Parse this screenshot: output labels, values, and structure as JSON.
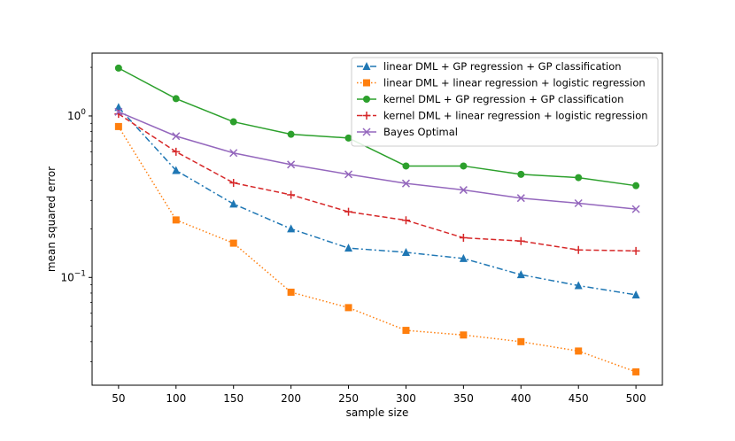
{
  "chart_data": {
    "type": "line",
    "title": "",
    "xlabel": "sample size",
    "ylabel": "mean squared error",
    "x": [
      50,
      100,
      150,
      200,
      250,
      300,
      350,
      400,
      450,
      500
    ],
    "xlim": [
      27,
      523
    ],
    "ylim": [
      0.0215,
      2.45
    ],
    "yscale": "log",
    "grid": false,
    "legend_position": "top-right",
    "x_ticks": [
      "50",
      "100",
      "150",
      "200",
      "250",
      "300",
      "350",
      "400",
      "450",
      "500"
    ],
    "y_ticks": [
      {
        "value": 1,
        "base": "10",
        "exp": "0"
      },
      {
        "value": 0.1,
        "base": "10",
        "exp": "−1"
      }
    ],
    "series": [
      {
        "name": "linear DML + GP regression + GP classification",
        "color": "#1f77b4",
        "dash": "dashdot",
        "marker": "triangle",
        "values": [
          1.13,
          0.46,
          0.285,
          0.2,
          0.152,
          0.143,
          0.131,
          0.104,
          0.089,
          0.078
        ]
      },
      {
        "name": "linear DML + linear regression + logistic regression",
        "color": "#ff7f0e",
        "dash": "dotted",
        "marker": "square",
        "values": [
          0.86,
          0.227,
          0.163,
          0.081,
          0.065,
          0.047,
          0.044,
          0.04,
          0.035,
          0.026
        ]
      },
      {
        "name": "kernel DML + GP regression + GP classification",
        "color": "#2ca02c",
        "dash": "solid",
        "marker": "circle",
        "values": [
          1.98,
          1.28,
          0.92,
          0.77,
          0.73,
          0.49,
          0.49,
          0.435,
          0.415,
          0.37
        ]
      },
      {
        "name": "kernel DML + linear regression + logistic regression",
        "color": "#d62728",
        "dash": "dashed",
        "marker": "plus",
        "values": [
          1.03,
          0.6,
          0.385,
          0.325,
          0.255,
          0.226,
          0.176,
          0.168,
          0.148,
          0.146
        ]
      },
      {
        "name": "Bayes Optimal",
        "color": "#9467bd",
        "dash": "solid",
        "marker": "x",
        "values": [
          1.06,
          0.75,
          0.59,
          0.5,
          0.435,
          0.382,
          0.348,
          0.31,
          0.288,
          0.265
        ]
      }
    ]
  }
}
